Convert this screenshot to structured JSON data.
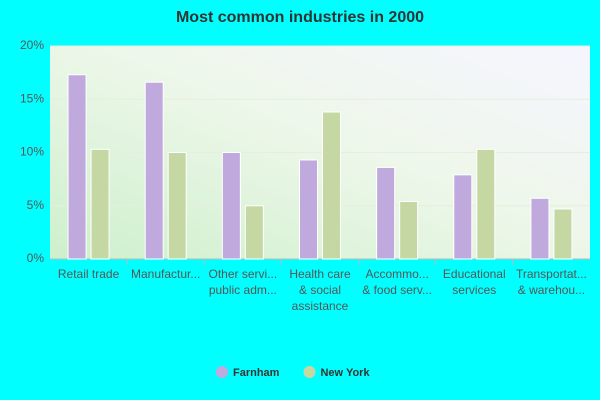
{
  "chart_data": {
    "type": "bar",
    "title": "Most common industries in 2000",
    "categories": [
      [
        "Retail trade"
      ],
      [
        "Manufactur..."
      ],
      [
        "Other servi...",
        "public adm..."
      ],
      [
        "Health care",
        "& social",
        "assistance"
      ],
      [
        "Accommo...",
        "& food serv..."
      ],
      [
        "Educational",
        "services"
      ],
      [
        "Transportat...",
        "& warehou..."
      ]
    ],
    "series": [
      {
        "name": "Farnham",
        "color": "#c0a9dc",
        "values": [
          17.3,
          16.6,
          10.0,
          9.3,
          8.6,
          7.9,
          5.7
        ]
      },
      {
        "name": "New York",
        "color": "#c5d8a4",
        "values": [
          10.3,
          10.0,
          5.0,
          13.8,
          5.4,
          10.3,
          4.7
        ]
      }
    ],
    "ylim": [
      0,
      20
    ],
    "yticks": [
      {
        "value": 0,
        "label": "0%"
      },
      {
        "value": 5,
        "label": "5%"
      },
      {
        "value": 10,
        "label": "10%"
      },
      {
        "value": 15,
        "label": "15%"
      },
      {
        "value": 20,
        "label": "20%"
      }
    ],
    "grid": true
  }
}
